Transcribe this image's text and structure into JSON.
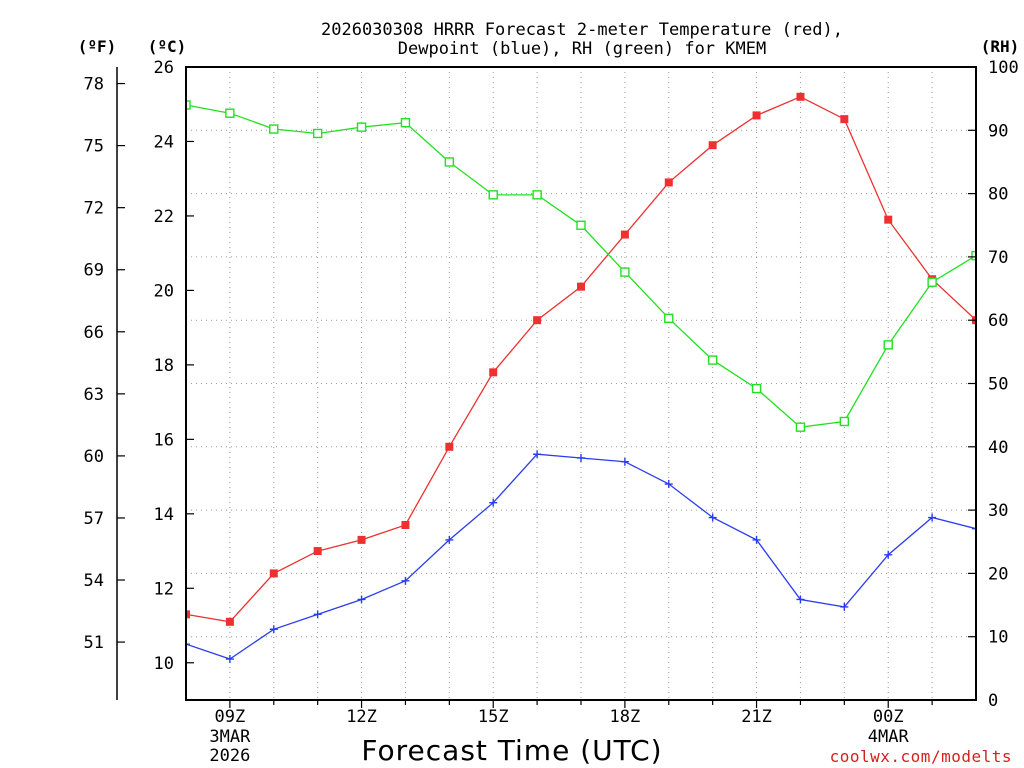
{
  "chart_data": {
    "type": "line",
    "title_line1": "2026030308 HRRR Forecast 2-meter Temperature (red),",
    "title_line2": "Dewpoint (blue), RH (green) for KMEM",
    "xlabel": "Forecast Time (UTC)",
    "credit": "coolwx.com/modelts",
    "units": {
      "fahrenheit": "(ºF)",
      "celsius": "(ºC)",
      "rh": "(RH)"
    },
    "x_ticks": [
      {
        "hour": 9,
        "label": "09Z",
        "sub1": "3MAR",
        "sub2": "2026"
      },
      {
        "hour": 12,
        "label": "12Z",
        "sub1": "",
        "sub2": ""
      },
      {
        "hour": 15,
        "label": "15Z",
        "sub1": "",
        "sub2": ""
      },
      {
        "hour": 18,
        "label": "18Z",
        "sub1": "",
        "sub2": ""
      },
      {
        "hour": 21,
        "label": "21Z",
        "sub1": "",
        "sub2": ""
      },
      {
        "hour": 24,
        "label": "00Z",
        "sub1": "4MAR",
        "sub2": ""
      }
    ],
    "xlim": [
      8,
      26
    ],
    "celsius_axis": {
      "range": [
        9,
        26
      ],
      "ticks": [
        "10",
        "12",
        "14",
        "16",
        "18",
        "20",
        "22",
        "24",
        "26"
      ]
    },
    "fahrenheit_axis": {
      "ticks": [
        "51",
        "54",
        "57",
        "60",
        "63",
        "66",
        "69",
        "72",
        "75",
        "78"
      ]
    },
    "rh_axis": {
      "range": [
        0,
        100
      ],
      "ticks": [
        "0",
        "10",
        "20",
        "30",
        "40",
        "50",
        "60",
        "70",
        "80",
        "90",
        "100"
      ]
    },
    "series": [
      {
        "name": "Temperature",
        "unit": "C",
        "color": "#ee3030",
        "marker": "filled-square",
        "x": [
          8,
          9,
          10,
          11,
          12,
          13,
          14,
          15,
          16,
          17,
          18,
          19,
          20,
          21,
          22,
          23,
          24,
          25,
          26
        ],
        "values": [
          11.3,
          11.1,
          12.4,
          13.0,
          13.3,
          13.7,
          15.8,
          17.8,
          19.2,
          20.1,
          21.5,
          22.9,
          23.9,
          24.7,
          25.2,
          24.6,
          21.9,
          20.3,
          19.2
        ]
      },
      {
        "name": "Dewpoint",
        "unit": "C",
        "color": "#2a3cf0",
        "marker": "plus",
        "x": [
          8,
          9,
          10,
          11,
          12,
          13,
          14,
          15,
          16,
          17,
          18,
          19,
          20,
          21,
          22,
          23,
          24,
          25,
          26
        ],
        "values": [
          10.5,
          10.1,
          10.9,
          11.3,
          11.7,
          12.2,
          13.3,
          14.3,
          15.6,
          15.5,
          15.4,
          14.8,
          13.9,
          13.3,
          11.7,
          11.5,
          12.9,
          13.9,
          13.6
        ]
      },
      {
        "name": "RH",
        "unit": "%",
        "color": "#22e022",
        "marker": "open-square",
        "x": [
          8,
          9,
          10,
          11,
          12,
          13,
          14,
          15,
          16,
          17,
          18,
          19,
          20,
          21,
          22,
          23,
          24,
          25,
          26
        ],
        "values": [
          94,
          92.7,
          90.2,
          89.5,
          90.5,
          91.2,
          85,
          79.8,
          79.8,
          75,
          67.6,
          60.3,
          53.7,
          49.2,
          43.1,
          44,
          56.1,
          66,
          70.2
        ]
      }
    ]
  }
}
